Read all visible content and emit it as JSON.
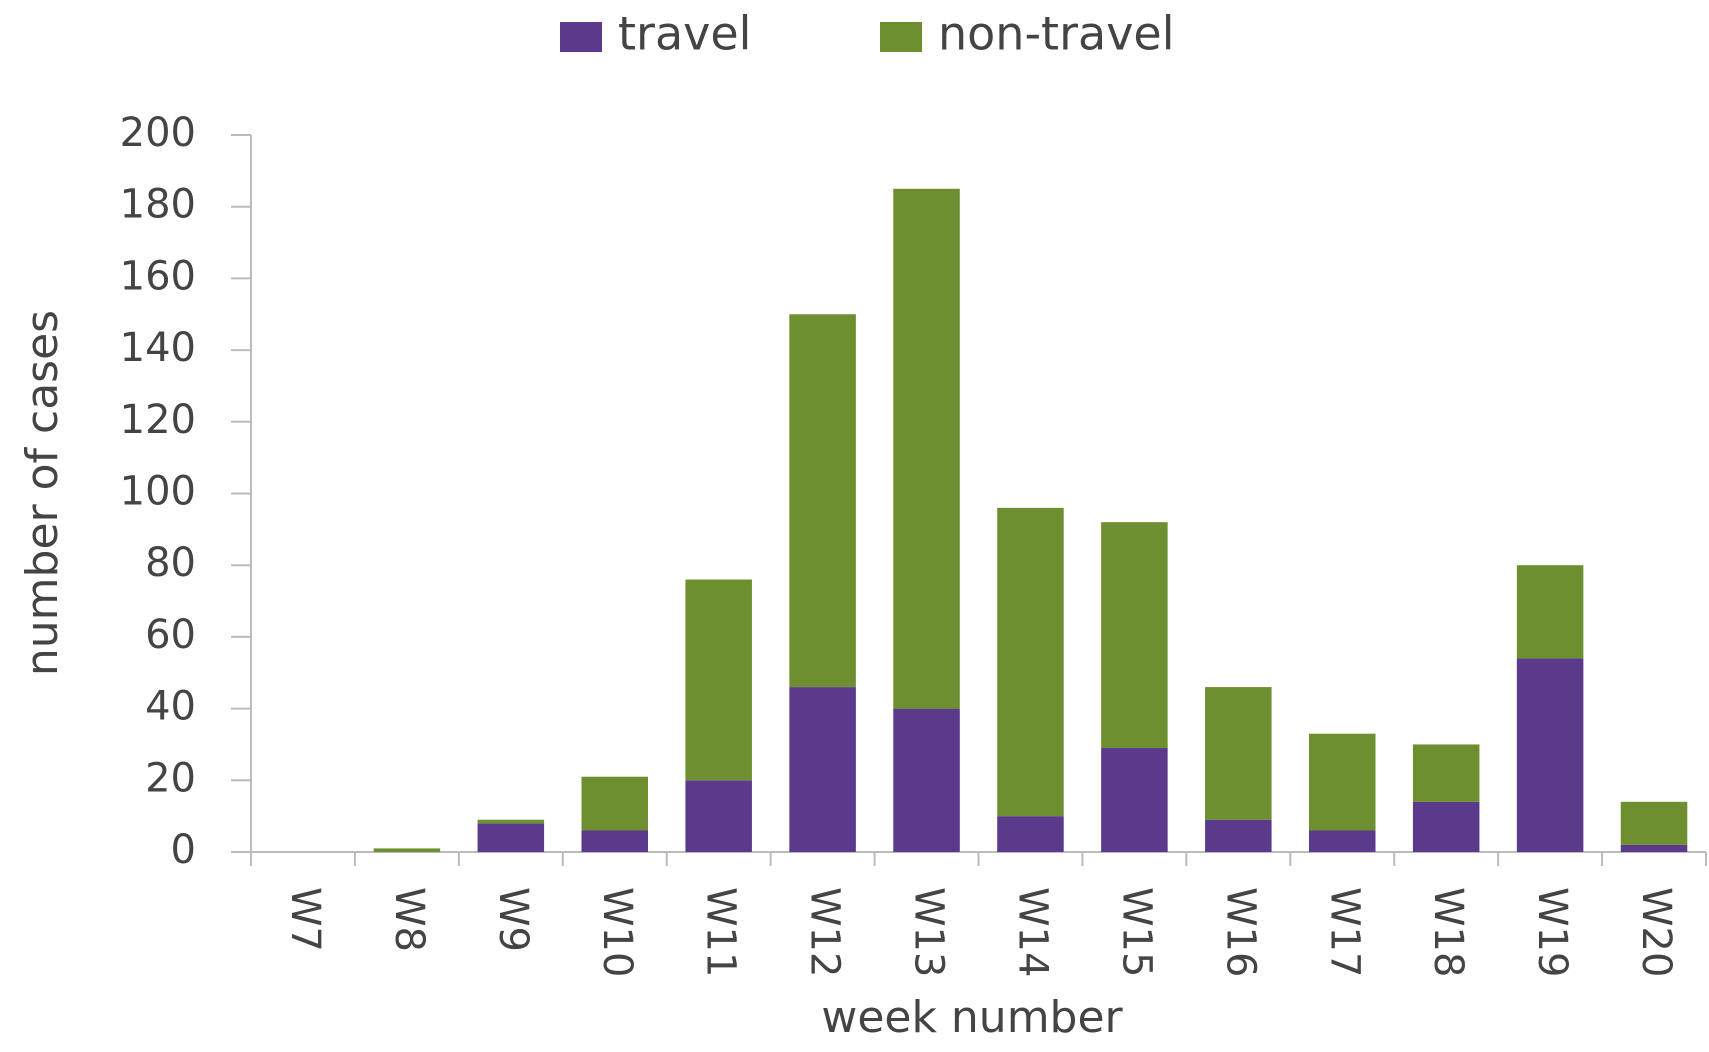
{
  "chart_data": {
    "type": "stacked-bar",
    "x_label": "week number",
    "y_label": "number of cases",
    "categories": [
      "W7",
      "W8",
      "W9",
      "W10",
      "W11",
      "W12",
      "W13",
      "W14",
      "W15",
      "W16",
      "W17",
      "W18",
      "W19",
      "W20"
    ],
    "series": [
      {
        "name": "travel",
        "color": "#5b3a8c",
        "values": [
          0,
          0,
          8,
          6,
          20,
          46,
          40,
          10,
          29,
          9,
          6,
          14,
          54,
          2
        ]
      },
      {
        "name": "non-travel",
        "color": "#6e8f2f",
        "values": [
          0,
          1,
          1,
          15,
          56,
          104,
          145,
          86,
          63,
          37,
          27,
          16,
          26,
          12
        ]
      }
    ],
    "ylim": [
      0,
      200
    ],
    "yticks": [
      0,
      20,
      40,
      60,
      80,
      100,
      120,
      140,
      160,
      180,
      200
    ],
    "legend": "top"
  }
}
